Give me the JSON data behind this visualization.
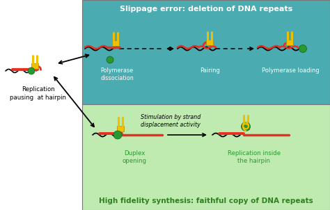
{
  "title_top": "Slippage error: deletion of DNA repeats",
  "title_bottom": "High fidelity synthesis: faithful copy of DNA repeats",
  "label_left": "Replication\npausing  at hairpin",
  "label1": "Polymerase\ndissociation",
  "label2": "Pairing",
  "label3": "Polymerase loading",
  "label4": "Duplex\nopening",
  "label5": "Replication inside\nthe hairpin",
  "label_stim": "Stimulation by strand\ndisplacement activity",
  "bg_top": "#4AABB0",
  "bg_bottom": "#BFEBB0",
  "bg_white": "#FFFFFF",
  "color_red": "#E83020",
  "color_yellow": "#F0C000",
  "color_green": "#2A9830",
  "color_black": "#111111",
  "title_top_color": "#FFFFFF",
  "title_bottom_color": "#2E8020",
  "figsize": [
    4.74,
    3.02
  ],
  "dpi": 100
}
